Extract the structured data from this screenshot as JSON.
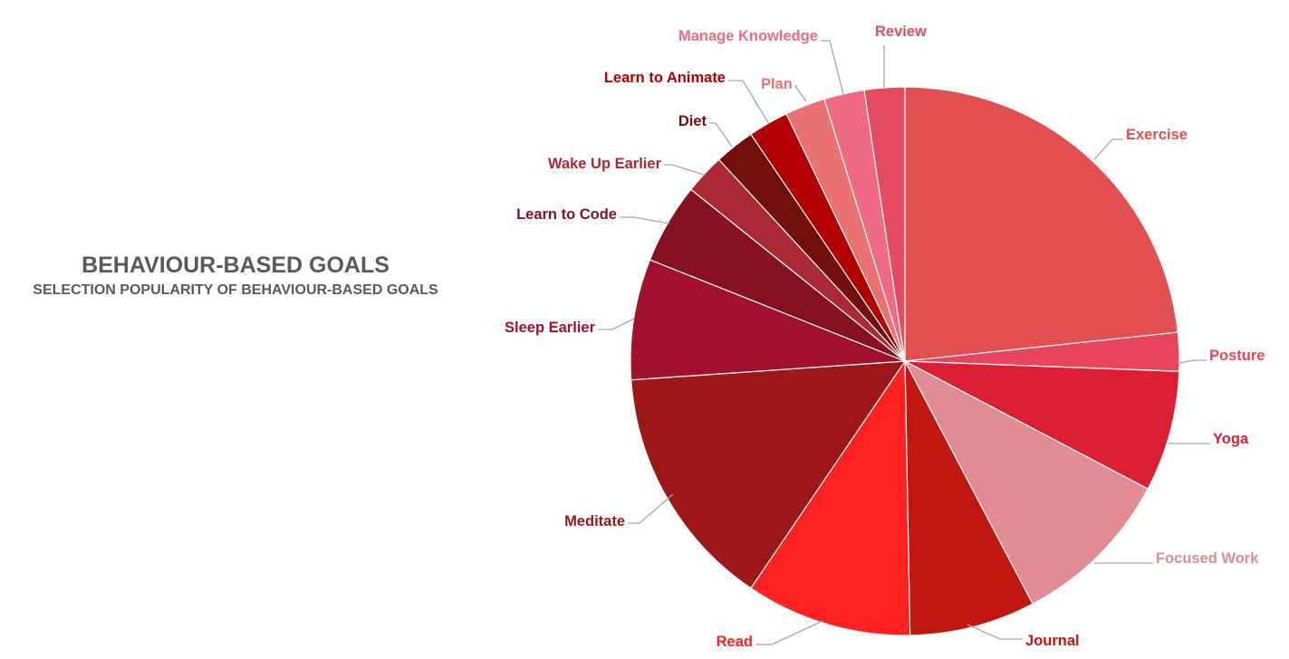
{
  "chart_data": {
    "type": "pie",
    "title": "BEHAVIOUR-BASED GOALS",
    "subtitle": "SELECTION POPULARITY OF BEHAVIOUR-BASED GOALS",
    "start_angle_deg": 0,
    "direction": "clockwise",
    "slices": [
      {
        "label": "Exercise",
        "value": 23.6,
        "color": "#e05050",
        "label_color": "#e05050"
      },
      {
        "label": "Posture",
        "value": 2.3,
        "color": "#e9445e",
        "label_color": "#e9445e"
      },
      {
        "label": "Yoga",
        "value": 7.2,
        "color": "#dc1e32",
        "label_color": "#dc1e32"
      },
      {
        "label": "Focused Work",
        "value": 9.7,
        "color": "#e28b92",
        "label_color": "#e28b92"
      },
      {
        "label": "Journal",
        "value": 7.5,
        "color": "#c0180e",
        "label_color": "#c0180e"
      },
      {
        "label": "Read",
        "value": 9.9,
        "color": "#ff2020",
        "label_color": "#ff2020"
      },
      {
        "label": "Meditate",
        "value": 14.6,
        "color": "#9d1719",
        "label_color": "#9d1719"
      },
      {
        "label": "Sleep Earlier",
        "value": 7.2,
        "color": "#a3102b",
        "label_color": "#a3102b"
      },
      {
        "label": "Learn to Code",
        "value": 4.8,
        "color": "#86111f",
        "label_color": "#86111f"
      },
      {
        "label": "Wake Up Earlier",
        "value": 2.4,
        "color": "#ab2934",
        "label_color": "#ab2934"
      },
      {
        "label": "Diet",
        "value": 2.4,
        "color": "#730f0a",
        "label_color": "#730f0a"
      },
      {
        "label": "Learn to Animate",
        "value": 2.4,
        "color": "#b30000",
        "label_color": "#b30000"
      },
      {
        "label": "Plan",
        "value": 2.4,
        "color": "#ec7272",
        "label_color": "#ec7272"
      },
      {
        "label": "Manage Knowledge",
        "value": 2.4,
        "color": "#f06a84",
        "label_color": "#f06a84"
      },
      {
        "label": "Review",
        "value": 2.4,
        "color": "#e54b5e",
        "label_color": "#e54b5e"
      }
    ]
  }
}
